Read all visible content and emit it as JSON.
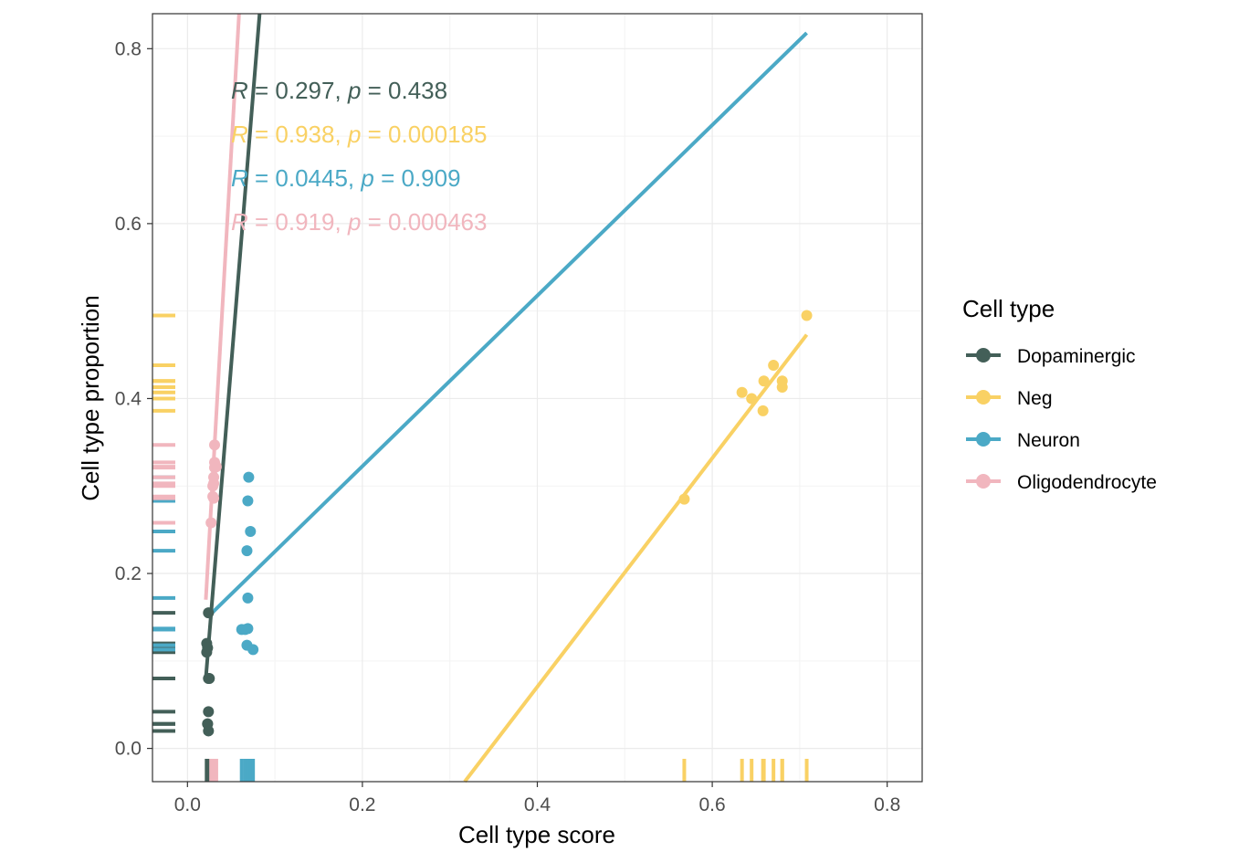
{
  "chart_data": {
    "type": "scatter",
    "xlabel": "Cell type score",
    "ylabel": "Cell type proportion",
    "xlim": [
      -0.04,
      0.84
    ],
    "ylim": [
      -0.038,
      0.84
    ],
    "x_ticks": [
      "0.0",
      "0.2",
      "0.4",
      "0.6",
      "0.8"
    ],
    "y_ticks": [
      "0.0",
      "0.2",
      "0.4",
      "0.6",
      "0.8"
    ],
    "x_tick_values": [
      0,
      0.2,
      0.4,
      0.6,
      0.8
    ],
    "y_tick_values": [
      0,
      0.2,
      0.4,
      0.6,
      0.8
    ],
    "grid": true,
    "legend": {
      "title": "Cell type",
      "position": "right"
    },
    "series": [
      {
        "name": "Dopaminergic",
        "color": "#435F58",
        "points": [
          [
            0.024,
            0.155
          ],
          [
            0.022,
            0.12
          ],
          [
            0.023,
            0.115
          ],
          [
            0.022,
            0.11
          ],
          [
            0.025,
            0.08
          ],
          [
            0.024,
            0.08
          ],
          [
            0.024,
            0.042
          ],
          [
            0.023,
            0.028
          ],
          [
            0.024,
            0.02
          ],
          [
            0.023,
            0.028
          ]
        ],
        "fit": [
          [
            0.021,
            0.08
          ],
          [
            0.0825,
            0.84
          ]
        ],
        "annotation": {
          "R": "0.297",
          "p": "0.438"
        }
      },
      {
        "name": "Neg",
        "color": "#F9D164",
        "points": [
          [
            0.568,
            0.285
          ],
          [
            0.634,
            0.407
          ],
          [
            0.645,
            0.4
          ],
          [
            0.659,
            0.42
          ],
          [
            0.658,
            0.386
          ],
          [
            0.67,
            0.438
          ],
          [
            0.68,
            0.42
          ],
          [
            0.68,
            0.413
          ],
          [
            0.708,
            0.495
          ]
        ],
        "fit": [
          [
            0.317,
            -0.038
          ],
          [
            0.708,
            0.473
          ]
        ],
        "annotation": {
          "R": "0.938",
          "p": "0.000185"
        }
      },
      {
        "name": "Neuron",
        "color": "#4BA9C6",
        "points": [
          [
            0.07,
            0.31
          ],
          [
            0.069,
            0.283
          ],
          [
            0.072,
            0.248
          ],
          [
            0.068,
            0.226
          ],
          [
            0.069,
            0.172
          ],
          [
            0.062,
            0.136
          ],
          [
            0.069,
            0.137
          ],
          [
            0.068,
            0.118
          ],
          [
            0.075,
            0.113
          ],
          [
            0.066,
            0.136
          ]
        ],
        "fit": [
          [
            0.023,
            0.15
          ],
          [
            0.708,
            0.818
          ]
        ],
        "annotation": {
          "R": "0.0445",
          "p": "0.909"
        }
      },
      {
        "name": "Oligodendrocyte",
        "color": "#F1B6BE",
        "points": [
          [
            0.031,
            0.347
          ],
          [
            0.031,
            0.327
          ],
          [
            0.031,
            0.321
          ],
          [
            0.03,
            0.31
          ],
          [
            0.029,
            0.3
          ],
          [
            0.029,
            0.288
          ],
          [
            0.03,
            0.286
          ],
          [
            0.027,
            0.258
          ],
          [
            0.033,
            0.322
          ],
          [
            0.03,
            0.303
          ]
        ],
        "fit": [
          [
            0.021,
            0.17
          ],
          [
            0.059,
            0.84
          ]
        ],
        "annotation": {
          "R": "0.919",
          "p": "0.000463"
        }
      }
    ]
  }
}
